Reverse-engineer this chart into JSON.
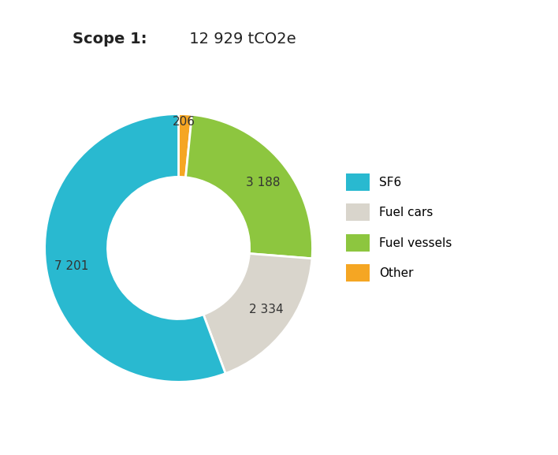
{
  "title_bold": "Scope 1:",
  "title_normal": " 12 929 tCO2e",
  "slices": [
    7201,
    2334,
    3188,
    206
  ],
  "labels": [
    "7 201",
    "2 334",
    "3 188",
    "206"
  ],
  "legend_labels": [
    "SF6",
    "Fuel cars",
    "Fuel vessels",
    "Other"
  ],
  "colors": [
    "#29B9D0",
    "#D9D5CC",
    "#8DC63F",
    "#F5A623"
  ],
  "background_color": "#ffffff",
  "start_angle": 90,
  "label_fontsize": 11,
  "title_fontsize": 14,
  "legend_fontsize": 11
}
